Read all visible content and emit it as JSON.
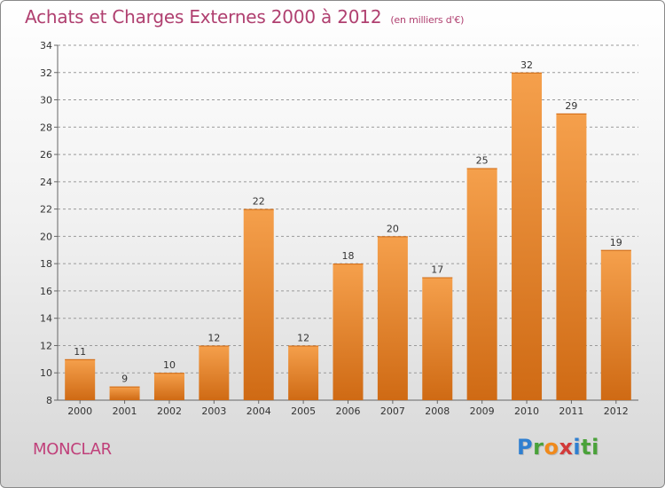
{
  "title": "Achats et Charges Externes 2000 à 2012",
  "subtitle": "(en milliers d'€)",
  "commune": "MONCLAR",
  "logo": "Proxiti",
  "colors": {
    "bar_light": "#f5a04c",
    "bar_dark": "#cf6a14",
    "title": "#b04070"
  },
  "chart_data": {
    "type": "bar",
    "categories": [
      "2000",
      "2001",
      "2002",
      "2003",
      "2004",
      "2005",
      "2006",
      "2007",
      "2008",
      "2009",
      "2010",
      "2011",
      "2012"
    ],
    "values": [
      11,
      9,
      10,
      12,
      22,
      12,
      18,
      20,
      17,
      25,
      32,
      29,
      19
    ],
    "ylim": [
      8,
      34
    ],
    "yticks": [
      8,
      10,
      12,
      14,
      16,
      18,
      20,
      22,
      24,
      26,
      28,
      30,
      32,
      34
    ],
    "xlabel": "",
    "ylabel": "",
    "grid": "horizontal-dashed",
    "legend": "none"
  }
}
